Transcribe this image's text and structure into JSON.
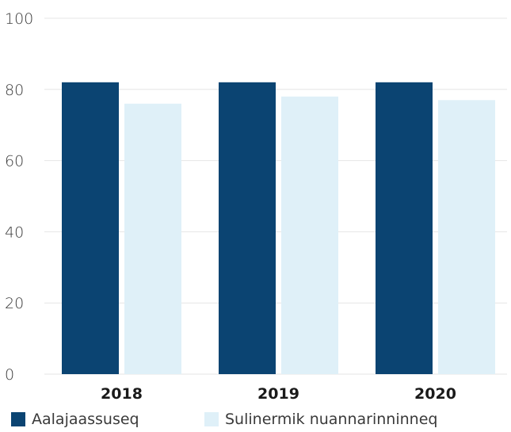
{
  "chart_data": {
    "type": "bar",
    "categories": [
      "2018",
      "2019",
      "2020"
    ],
    "series": [
      {
        "name": "Aalajaassuseq",
        "values": [
          82,
          82,
          82
        ],
        "color": "#0b4472"
      },
      {
        "name": "Sulinermik nuannarinninneq",
        "values": [
          76,
          78,
          77
        ],
        "color": "#dff0f8"
      }
    ],
    "y_ticks": [
      "0",
      "20",
      "40",
      "60",
      "80",
      "100"
    ],
    "ylim": [
      0,
      100
    ],
    "grid": true,
    "legend_position": "bottom"
  }
}
